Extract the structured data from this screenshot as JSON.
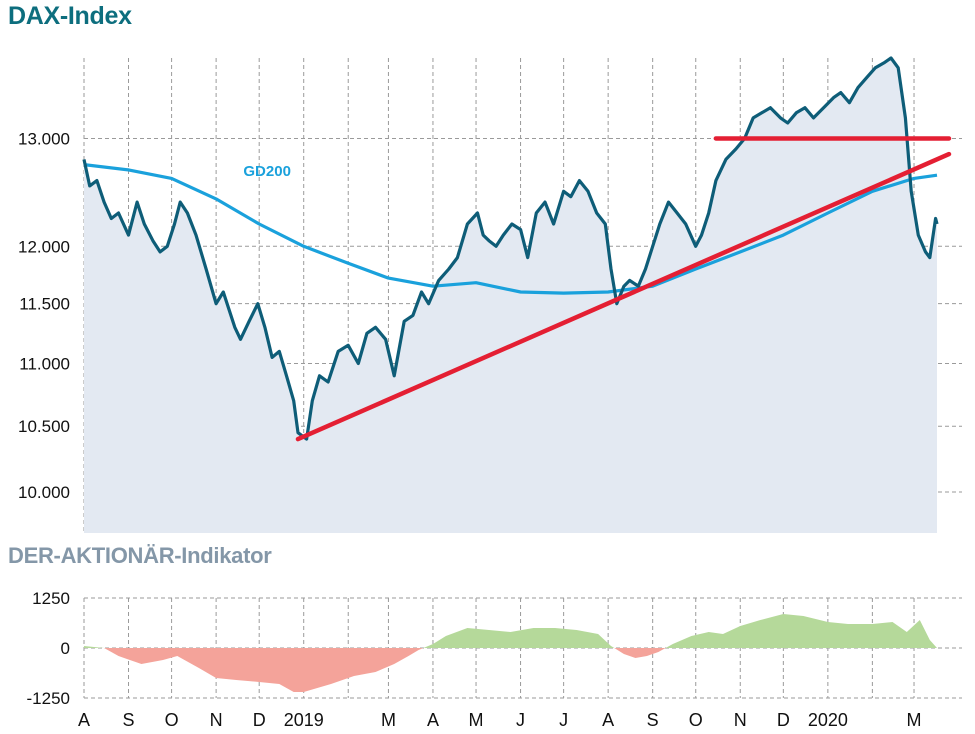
{
  "titles": {
    "main": "DAX-Index",
    "indicator": "DER-AKTIONÄR-Indikator"
  },
  "colors": {
    "dax_line": "#0e5d78",
    "gd200": "#1aa1dc",
    "trend": "#e41f33",
    "area": "#e3e9f2",
    "positive": "#b5d99a",
    "negative": "#f4a39a"
  },
  "chart_data": [
    {
      "type": "line",
      "title": "DAX-Index",
      "y_scale": "log",
      "ylim": [
        9700,
        13800
      ],
      "y_ticks": [
        10000,
        10500,
        11000,
        11500,
        12000,
        13000
      ],
      "y_tick_labels": [
        "10.000",
        "10.500",
        "11.000",
        "11.500",
        "12.000",
        "13.000"
      ],
      "x_range": [
        "2018-08-01",
        "2020-03-17"
      ],
      "month_labels": [
        "A",
        "S",
        "O",
        "N",
        "D",
        "2019",
        "M",
        "A",
        "M",
        "J",
        "J",
        "A",
        "S",
        "O",
        "N",
        "D",
        "2020",
        "M"
      ],
      "month_dates": [
        "2018-08-01",
        "2018-09-01",
        "2018-10-01",
        "2018-11-01",
        "2018-12-01",
        "2019-01-01",
        "2019-03-01",
        "2019-04-01",
        "2019-05-01",
        "2019-06-01",
        "2019-07-01",
        "2019-08-01",
        "2019-09-01",
        "2019-10-01",
        "2019-11-01",
        "2019-12-01",
        "2020-01-01",
        "2020-03-01"
      ],
      "grid": true,
      "series": [
        {
          "name": "DAX-Index",
          "x": [
            "2018-08-01",
            "2018-08-05",
            "2018-08-10",
            "2018-08-15",
            "2018-08-20",
            "2018-08-25",
            "2018-09-01",
            "2018-09-07",
            "2018-09-12",
            "2018-09-18",
            "2018-09-23",
            "2018-09-28",
            "2018-10-03",
            "2018-10-07",
            "2018-10-12",
            "2018-10-18",
            "2018-10-25",
            "2018-11-01",
            "2018-11-06",
            "2018-11-10",
            "2018-11-14",
            "2018-11-18",
            "2018-11-24",
            "2018-11-30",
            "2018-12-05",
            "2018-12-10",
            "2018-12-15",
            "2018-12-20",
            "2018-12-25",
            "2018-12-28",
            "2019-01-03",
            "2019-01-07",
            "2019-01-12",
            "2019-01-18",
            "2019-01-25",
            "2019-02-01",
            "2019-02-08",
            "2019-02-14",
            "2019-02-20",
            "2019-02-27",
            "2019-03-05",
            "2019-03-12",
            "2019-03-18",
            "2019-03-24",
            "2019-03-29",
            "2019-04-05",
            "2019-04-12",
            "2019-04-18",
            "2019-04-25",
            "2019-05-02",
            "2019-05-06",
            "2019-05-10",
            "2019-05-15",
            "2019-05-20",
            "2019-05-26",
            "2019-06-01",
            "2019-06-06",
            "2019-06-12",
            "2019-06-18",
            "2019-06-24",
            "2019-07-01",
            "2019-07-06",
            "2019-07-12",
            "2019-07-18",
            "2019-07-24",
            "2019-07-30",
            "2019-08-03",
            "2019-08-07",
            "2019-08-12",
            "2019-08-16",
            "2019-08-22",
            "2019-08-27",
            "2019-09-01",
            "2019-09-06",
            "2019-09-12",
            "2019-09-18",
            "2019-09-24",
            "2019-10-01",
            "2019-10-05",
            "2019-10-10",
            "2019-10-15",
            "2019-10-22",
            "2019-10-29",
            "2019-11-04",
            "2019-11-10",
            "2019-11-16",
            "2019-11-22",
            "2019-11-29",
            "2019-12-04",
            "2019-12-10",
            "2019-12-16",
            "2019-12-22",
            "2019-12-29",
            "2020-01-05",
            "2020-01-10",
            "2020-01-16",
            "2020-01-22",
            "2020-01-28",
            "2020-02-03",
            "2020-02-09",
            "2020-02-14",
            "2020-02-19",
            "2020-02-24",
            "2020-02-28",
            "2020-03-04",
            "2020-03-09",
            "2020-03-12",
            "2020-03-16",
            "2020-03-17"
          ],
          "y": [
            12800,
            12550,
            12600,
            12400,
            12250,
            12300,
            12100,
            12400,
            12200,
            12050,
            11950,
            12000,
            12200,
            12400,
            12300,
            12100,
            11800,
            11500,
            11600,
            11450,
            11300,
            11200,
            11350,
            11500,
            11300,
            11050,
            11100,
            10900,
            10700,
            10450,
            10400,
            10700,
            10900,
            10850,
            11100,
            11150,
            11000,
            11250,
            11300,
            11200,
            10900,
            11350,
            11400,
            11600,
            11500,
            11700,
            11800,
            11900,
            12200,
            12300,
            12100,
            12050,
            12000,
            12100,
            12200,
            12150,
            11900,
            12300,
            12400,
            12200,
            12500,
            12450,
            12600,
            12500,
            12300,
            12200,
            11800,
            11500,
            11650,
            11700,
            11650,
            11800,
            12000,
            12200,
            12400,
            12300,
            12200,
            12000,
            12100,
            12300,
            12600,
            12800,
            12900,
            13000,
            13200,
            13250,
            13300,
            13200,
            13150,
            13250,
            13300,
            13200,
            13300,
            13400,
            13450,
            13350,
            13500,
            13600,
            13700,
            13750,
            13800,
            13700,
            13200,
            12500,
            12100,
            11950,
            11900,
            12250,
            12200
          ]
        },
        {
          "name": "GD200",
          "x": [
            "2018-08-01",
            "2018-09-01",
            "2018-10-01",
            "2018-11-01",
            "2018-12-01",
            "2019-01-01",
            "2019-02-01",
            "2019-03-01",
            "2019-04-01",
            "2019-05-01",
            "2019-06-01",
            "2019-07-01",
            "2019-08-01",
            "2019-09-01",
            "2019-10-01",
            "2019-11-01",
            "2019-12-01",
            "2020-01-01",
            "2020-02-01",
            "2020-03-01",
            "2020-03-17"
          ],
          "y": [
            12750,
            12700,
            12620,
            12430,
            12200,
            12000,
            11850,
            11720,
            11650,
            11680,
            11600,
            11590,
            11600,
            11650,
            11800,
            11950,
            12100,
            12300,
            12500,
            12620,
            12650
          ]
        }
      ],
      "trend_lines": [
        {
          "from": [
            "2018-12-28",
            10400
          ],
          "to": [
            "2020-03-17",
            12850
          ]
        },
        {
          "from": [
            "2019-10-15",
            13000
          ],
          "to": [
            "2020-03-17",
            13000
          ]
        }
      ],
      "annotations": [
        {
          "text": "GD200",
          "x": "2018-11-20",
          "y": 12700
        }
      ]
    },
    {
      "type": "area",
      "title": "DER-AKTIONÄR-Indikator",
      "ylim": [
        -1250,
        1250
      ],
      "y_ticks": [
        -1250,
        0,
        1250
      ],
      "y_tick_labels": [
        "-1250",
        "0",
        "1250"
      ],
      "grid": true,
      "series": [
        {
          "name": "DER-AKTIONÄR-Indikator",
          "x": [
            "2018-08-01",
            "2018-08-15",
            "2018-08-25",
            "2018-09-10",
            "2018-09-25",
            "2018-10-05",
            "2018-10-20",
            "2018-11-01",
            "2018-11-15",
            "2018-12-01",
            "2018-12-15",
            "2018-12-25",
            "2019-01-01",
            "2019-01-20",
            "2019-02-05",
            "2019-02-20",
            "2019-03-05",
            "2019-03-15",
            "2019-03-22",
            "2019-04-01",
            "2019-04-10",
            "2019-04-25",
            "2019-05-10",
            "2019-05-25",
            "2019-06-10",
            "2019-06-25",
            "2019-07-10",
            "2019-07-25",
            "2019-08-03",
            "2019-08-12",
            "2019-08-20",
            "2019-08-28",
            "2019-09-05",
            "2019-09-15",
            "2019-09-28",
            "2019-10-10",
            "2019-10-20",
            "2019-11-01",
            "2019-11-15",
            "2019-12-01",
            "2019-12-15",
            "2020-01-01",
            "2020-01-15",
            "2020-02-01",
            "2020-02-15",
            "2020-02-25",
            "2020-03-05",
            "2020-03-12",
            "2020-03-17"
          ],
          "y": [
            50,
            0,
            -200,
            -400,
            -300,
            -200,
            -500,
            -750,
            -800,
            -850,
            -900,
            -1100,
            -1100,
            -900,
            -700,
            -600,
            -400,
            -200,
            -50,
            100,
            300,
            500,
            450,
            400,
            500,
            500,
            450,
            350,
            50,
            -150,
            -250,
            -200,
            -100,
            100,
            300,
            400,
            350,
            550,
            700,
            850,
            800,
            650,
            600,
            600,
            650,
            400,
            700,
            200,
            0
          ]
        }
      ]
    }
  ]
}
